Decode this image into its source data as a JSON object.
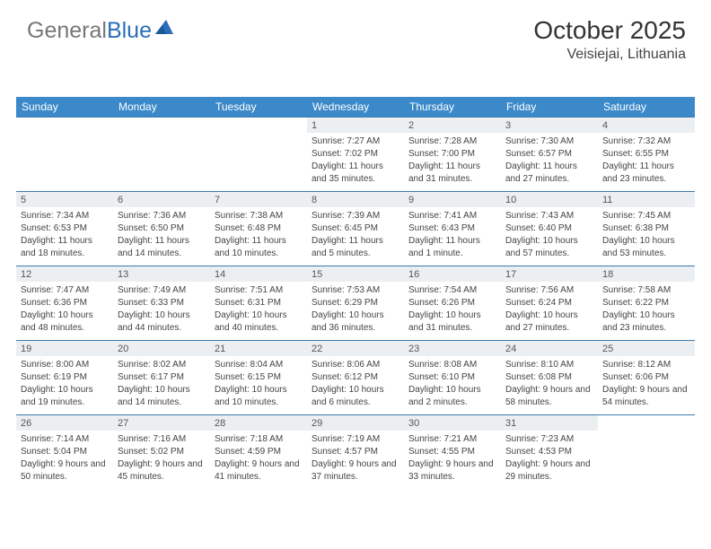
{
  "logo": {
    "text_gray": "General",
    "text_blue": "Blue"
  },
  "header": {
    "month_title": "October 2025",
    "location": "Veisiejai, Lithuania"
  },
  "colors": {
    "header_bg": "#3b89c9",
    "header_text": "#ffffff",
    "daynum_bg": "#eceff1",
    "border": "#3b7ab0",
    "logo_gray": "#777777",
    "logo_blue": "#2a6db8",
    "body_text": "#444444"
  },
  "typography": {
    "title_fontsize": 28,
    "location_fontsize": 16,
    "dayheader_fontsize": 12,
    "daynum_fontsize": 11,
    "info_fontsize": 10
  },
  "day_headers": [
    "Sunday",
    "Monday",
    "Tuesday",
    "Wednesday",
    "Thursday",
    "Friday",
    "Saturday"
  ],
  "weeks": [
    [
      null,
      null,
      null,
      {
        "n": "1",
        "sr": "Sunrise: 7:27 AM",
        "ss": "Sunset: 7:02 PM",
        "dl": "Daylight: 11 hours and 35 minutes."
      },
      {
        "n": "2",
        "sr": "Sunrise: 7:28 AM",
        "ss": "Sunset: 7:00 PM",
        "dl": "Daylight: 11 hours and 31 minutes."
      },
      {
        "n": "3",
        "sr": "Sunrise: 7:30 AM",
        "ss": "Sunset: 6:57 PM",
        "dl": "Daylight: 11 hours and 27 minutes."
      },
      {
        "n": "4",
        "sr": "Sunrise: 7:32 AM",
        "ss": "Sunset: 6:55 PM",
        "dl": "Daylight: 11 hours and 23 minutes."
      }
    ],
    [
      {
        "n": "5",
        "sr": "Sunrise: 7:34 AM",
        "ss": "Sunset: 6:53 PM",
        "dl": "Daylight: 11 hours and 18 minutes."
      },
      {
        "n": "6",
        "sr": "Sunrise: 7:36 AM",
        "ss": "Sunset: 6:50 PM",
        "dl": "Daylight: 11 hours and 14 minutes."
      },
      {
        "n": "7",
        "sr": "Sunrise: 7:38 AM",
        "ss": "Sunset: 6:48 PM",
        "dl": "Daylight: 11 hours and 10 minutes."
      },
      {
        "n": "8",
        "sr": "Sunrise: 7:39 AM",
        "ss": "Sunset: 6:45 PM",
        "dl": "Daylight: 11 hours and 5 minutes."
      },
      {
        "n": "9",
        "sr": "Sunrise: 7:41 AM",
        "ss": "Sunset: 6:43 PM",
        "dl": "Daylight: 11 hours and 1 minute."
      },
      {
        "n": "10",
        "sr": "Sunrise: 7:43 AM",
        "ss": "Sunset: 6:40 PM",
        "dl": "Daylight: 10 hours and 57 minutes."
      },
      {
        "n": "11",
        "sr": "Sunrise: 7:45 AM",
        "ss": "Sunset: 6:38 PM",
        "dl": "Daylight: 10 hours and 53 minutes."
      }
    ],
    [
      {
        "n": "12",
        "sr": "Sunrise: 7:47 AM",
        "ss": "Sunset: 6:36 PM",
        "dl": "Daylight: 10 hours and 48 minutes."
      },
      {
        "n": "13",
        "sr": "Sunrise: 7:49 AM",
        "ss": "Sunset: 6:33 PM",
        "dl": "Daylight: 10 hours and 44 minutes."
      },
      {
        "n": "14",
        "sr": "Sunrise: 7:51 AM",
        "ss": "Sunset: 6:31 PM",
        "dl": "Daylight: 10 hours and 40 minutes."
      },
      {
        "n": "15",
        "sr": "Sunrise: 7:53 AM",
        "ss": "Sunset: 6:29 PM",
        "dl": "Daylight: 10 hours and 36 minutes."
      },
      {
        "n": "16",
        "sr": "Sunrise: 7:54 AM",
        "ss": "Sunset: 6:26 PM",
        "dl": "Daylight: 10 hours and 31 minutes."
      },
      {
        "n": "17",
        "sr": "Sunrise: 7:56 AM",
        "ss": "Sunset: 6:24 PM",
        "dl": "Daylight: 10 hours and 27 minutes."
      },
      {
        "n": "18",
        "sr": "Sunrise: 7:58 AM",
        "ss": "Sunset: 6:22 PM",
        "dl": "Daylight: 10 hours and 23 minutes."
      }
    ],
    [
      {
        "n": "19",
        "sr": "Sunrise: 8:00 AM",
        "ss": "Sunset: 6:19 PM",
        "dl": "Daylight: 10 hours and 19 minutes."
      },
      {
        "n": "20",
        "sr": "Sunrise: 8:02 AM",
        "ss": "Sunset: 6:17 PM",
        "dl": "Daylight: 10 hours and 14 minutes."
      },
      {
        "n": "21",
        "sr": "Sunrise: 8:04 AM",
        "ss": "Sunset: 6:15 PM",
        "dl": "Daylight: 10 hours and 10 minutes."
      },
      {
        "n": "22",
        "sr": "Sunrise: 8:06 AM",
        "ss": "Sunset: 6:12 PM",
        "dl": "Daylight: 10 hours and 6 minutes."
      },
      {
        "n": "23",
        "sr": "Sunrise: 8:08 AM",
        "ss": "Sunset: 6:10 PM",
        "dl": "Daylight: 10 hours and 2 minutes."
      },
      {
        "n": "24",
        "sr": "Sunrise: 8:10 AM",
        "ss": "Sunset: 6:08 PM",
        "dl": "Daylight: 9 hours and 58 minutes."
      },
      {
        "n": "25",
        "sr": "Sunrise: 8:12 AM",
        "ss": "Sunset: 6:06 PM",
        "dl": "Daylight: 9 hours and 54 minutes."
      }
    ],
    [
      {
        "n": "26",
        "sr": "Sunrise: 7:14 AM",
        "ss": "Sunset: 5:04 PM",
        "dl": "Daylight: 9 hours and 50 minutes."
      },
      {
        "n": "27",
        "sr": "Sunrise: 7:16 AM",
        "ss": "Sunset: 5:02 PM",
        "dl": "Daylight: 9 hours and 45 minutes."
      },
      {
        "n": "28",
        "sr": "Sunrise: 7:18 AM",
        "ss": "Sunset: 4:59 PM",
        "dl": "Daylight: 9 hours and 41 minutes."
      },
      {
        "n": "29",
        "sr": "Sunrise: 7:19 AM",
        "ss": "Sunset: 4:57 PM",
        "dl": "Daylight: 9 hours and 37 minutes."
      },
      {
        "n": "30",
        "sr": "Sunrise: 7:21 AM",
        "ss": "Sunset: 4:55 PM",
        "dl": "Daylight: 9 hours and 33 minutes."
      },
      {
        "n": "31",
        "sr": "Sunrise: 7:23 AM",
        "ss": "Sunset: 4:53 PM",
        "dl": "Daylight: 9 hours and 29 minutes."
      },
      null
    ]
  ]
}
